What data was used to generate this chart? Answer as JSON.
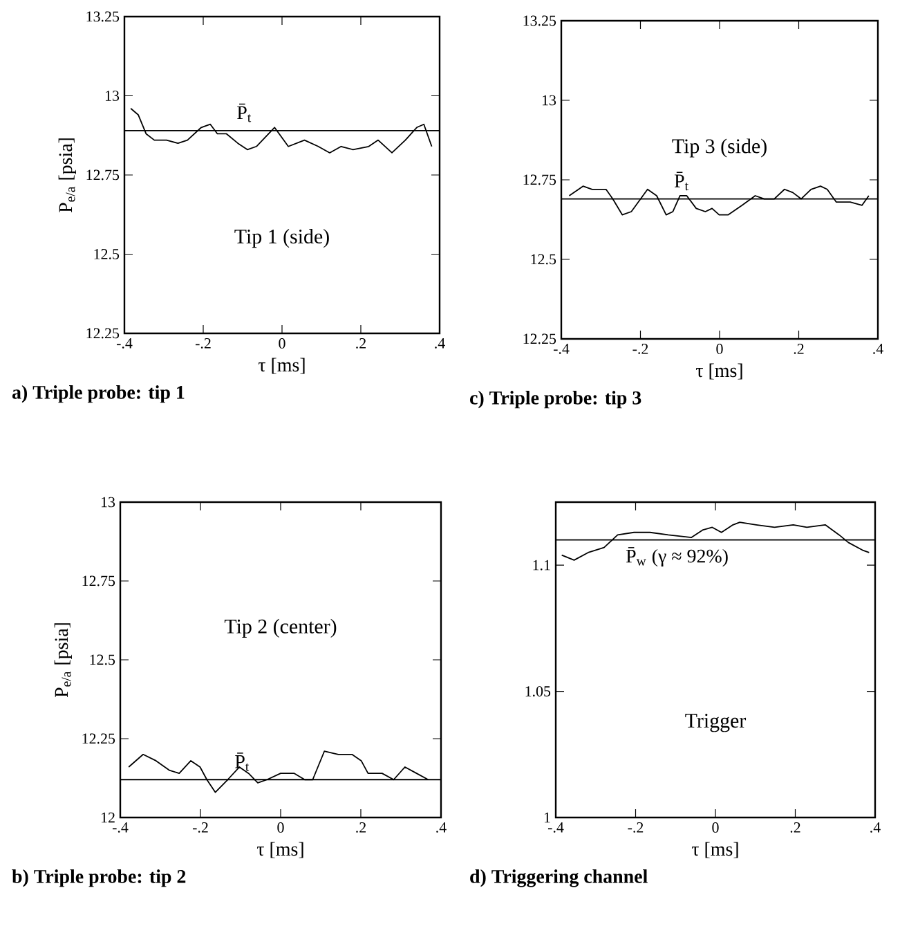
{
  "chart_data": [
    {
      "type": "line",
      "title": "a) Triple probe: tip 1",
      "xlabel": "τ [ms]",
      "ylabel": "P$_{e/a}$ [psia]",
      "xlim": [
        -0.4,
        0.4
      ],
      "ylim": [
        12.25,
        13.25
      ],
      "xticks": [
        {
          "value": -0.4,
          "label": "-.4"
        },
        {
          "value": -0.2,
          "label": "-.2"
        },
        0,
        {
          "value": 0.2,
          "label": ".2"
        },
        {
          "value": 0.4,
          "label": ".4"
        }
      ],
      "yticks": [
        12.25,
        12.5,
        12.75,
        13,
        13.25
      ],
      "series": [
        {
          "color": "#000000",
          "x": [
            -0.384,
            -0.365,
            -0.345,
            -0.324,
            -0.293,
            -0.264,
            -0.24,
            -0.205,
            -0.182,
            -0.164,
            -0.141,
            -0.112,
            -0.088,
            -0.065,
            -0.019,
            0.016,
            0.057,
            0.092,
            0.121,
            0.15,
            0.18,
            0.22,
            0.244,
            0.279,
            0.313,
            0.342,
            0.36,
            0.38
          ],
          "values": [
            12.96,
            12.94,
            12.88,
            12.86,
            12.86,
            12.85,
            12.86,
            12.9,
            12.91,
            12.88,
            12.88,
            12.85,
            12.83,
            12.84,
            12.9,
            12.84,
            12.86,
            12.84,
            12.82,
            12.84,
            12.83,
            12.84,
            12.86,
            12.82,
            12.86,
            12.9,
            12.91,
            12.84
          ]
        }
      ],
      "ref_lines": [
        {
          "axis": "y",
          "value": 12.89,
          "label": "P̄$_{t}$",
          "color": "#000000"
        }
      ],
      "annotations": [
        "Tip 1  (side)"
      ]
    },
    {
      "type": "line",
      "title": "c) Triple probe: tip 3",
      "xlabel": "τ [ms]",
      "xlim": [
        -0.4,
        0.4
      ],
      "ylim": [
        12.25,
        13.25
      ],
      "xticks": [
        {
          "value": -0.4,
          "label": "-.4"
        },
        {
          "value": -0.2,
          "label": "-.2"
        },
        0,
        {
          "value": 0.2,
          "label": ".2"
        },
        {
          "value": 0.4,
          "label": ".4"
        }
      ],
      "yticks": [
        12.25,
        12.5,
        12.75,
        13,
        13.25
      ],
      "series": [
        {
          "color": "#000000",
          "x": [
            -0.38,
            -0.345,
            -0.322,
            -0.287,
            -0.27,
            -0.246,
            -0.223,
            -0.182,
            -0.159,
            -0.135,
            -0.118,
            -0.1,
            -0.083,
            -0.059,
            -0.036,
            -0.019,
            -0.001,
            0.022,
            0.057,
            0.09,
            0.113,
            0.138,
            0.164,
            0.185,
            0.206,
            0.231,
            0.255,
            0.272,
            0.295,
            0.33,
            0.36,
            0.377
          ],
          "values": [
            12.7,
            12.73,
            12.72,
            12.72,
            12.69,
            12.64,
            12.65,
            12.72,
            12.7,
            12.64,
            12.65,
            12.7,
            12.7,
            12.66,
            12.65,
            12.66,
            12.64,
            12.64,
            12.67,
            12.7,
            12.69,
            12.69,
            12.72,
            12.71,
            12.69,
            12.72,
            12.73,
            12.72,
            12.68,
            12.68,
            12.67,
            12.7
          ]
        }
      ],
      "ref_lines": [
        {
          "axis": "y",
          "value": 12.69,
          "label": "P̄$_{t}$",
          "color": "#000000"
        }
      ],
      "annotations": [
        "Tip 3  (side)"
      ]
    },
    {
      "type": "line",
      "title": "b) Triple probe: tip 2",
      "xlabel": "τ [ms]",
      "ylabel": "P$_{e/a}$ [psia]",
      "xlim": [
        -0.4,
        0.4
      ],
      "ylim": [
        12,
        13
      ],
      "xticks": [
        {
          "value": -0.4,
          "label": "-.4"
        },
        {
          "value": -0.2,
          "label": "-.2"
        },
        0,
        {
          "value": 0.2,
          "label": ".2"
        },
        {
          "value": 0.4,
          "label": ".4"
        }
      ],
      "yticks": [
        12,
        12.25,
        12.5,
        12.75,
        13
      ],
      "series": [
        {
          "color": "#000000",
          "x": [
            -0.379,
            -0.343,
            -0.311,
            -0.278,
            -0.253,
            -0.224,
            -0.201,
            -0.184,
            -0.163,
            -0.132,
            -0.103,
            -0.08,
            -0.057,
            -0.034,
            0.0,
            0.034,
            0.06,
            0.08,
            0.109,
            0.144,
            0.178,
            0.201,
            0.218,
            0.253,
            0.282,
            0.31,
            0.339,
            0.368
          ],
          "values": [
            12.16,
            12.2,
            12.18,
            12.15,
            12.14,
            12.18,
            12.16,
            12.12,
            12.08,
            12.12,
            12.16,
            12.14,
            12.11,
            12.12,
            12.14,
            12.14,
            12.12,
            12.12,
            12.21,
            12.2,
            12.2,
            12.18,
            12.14,
            12.14,
            12.12,
            12.16,
            12.14,
            12.12
          ]
        }
      ],
      "ref_lines": [
        {
          "axis": "y",
          "value": 12.12,
          "label": "P̄$_{t}$",
          "color": "#000000"
        }
      ],
      "annotations": [
        "Tip 2  (center)"
      ]
    },
    {
      "type": "line",
      "title": "d) Triggering channel",
      "xlabel": "τ [ms]",
      "xlim": [
        -0.4,
        0.4
      ],
      "ylim": [
        1,
        1.125
      ],
      "xticks": [
        {
          "value": -0.4,
          "label": "-.4"
        },
        {
          "value": -0.2,
          "label": "-.2"
        },
        0,
        {
          "value": 0.2,
          "label": ".2"
        },
        {
          "value": 0.4,
          "label": ".4"
        }
      ],
      "yticks": [
        1,
        1.05,
        1.1
      ],
      "series": [
        {
          "color": "#000000",
          "x": [
            -0.385,
            -0.354,
            -0.319,
            -0.279,
            -0.245,
            -0.204,
            -0.164,
            -0.118,
            -0.06,
            -0.031,
            -0.008,
            0.015,
            0.044,
            0.061,
            0.102,
            0.148,
            0.195,
            0.229,
            0.275,
            0.31,
            0.333,
            0.368,
            0.385
          ],
          "values": [
            1.104,
            1.102,
            1.105,
            1.107,
            1.112,
            1.113,
            1.113,
            1.112,
            1.111,
            1.114,
            1.115,
            1.113,
            1.116,
            1.117,
            1.116,
            1.115,
            1.116,
            1.115,
            1.116,
            1.112,
            1.109,
            1.106,
            1.105
          ]
        }
      ],
      "ref_lines": [
        {
          "axis": "y",
          "value": 1.11,
          "label": "P̄$_{w}$  (γ ≈ 92%)",
          "color": "#000000"
        }
      ],
      "annotations": [
        "Trigger"
      ]
    }
  ]
}
